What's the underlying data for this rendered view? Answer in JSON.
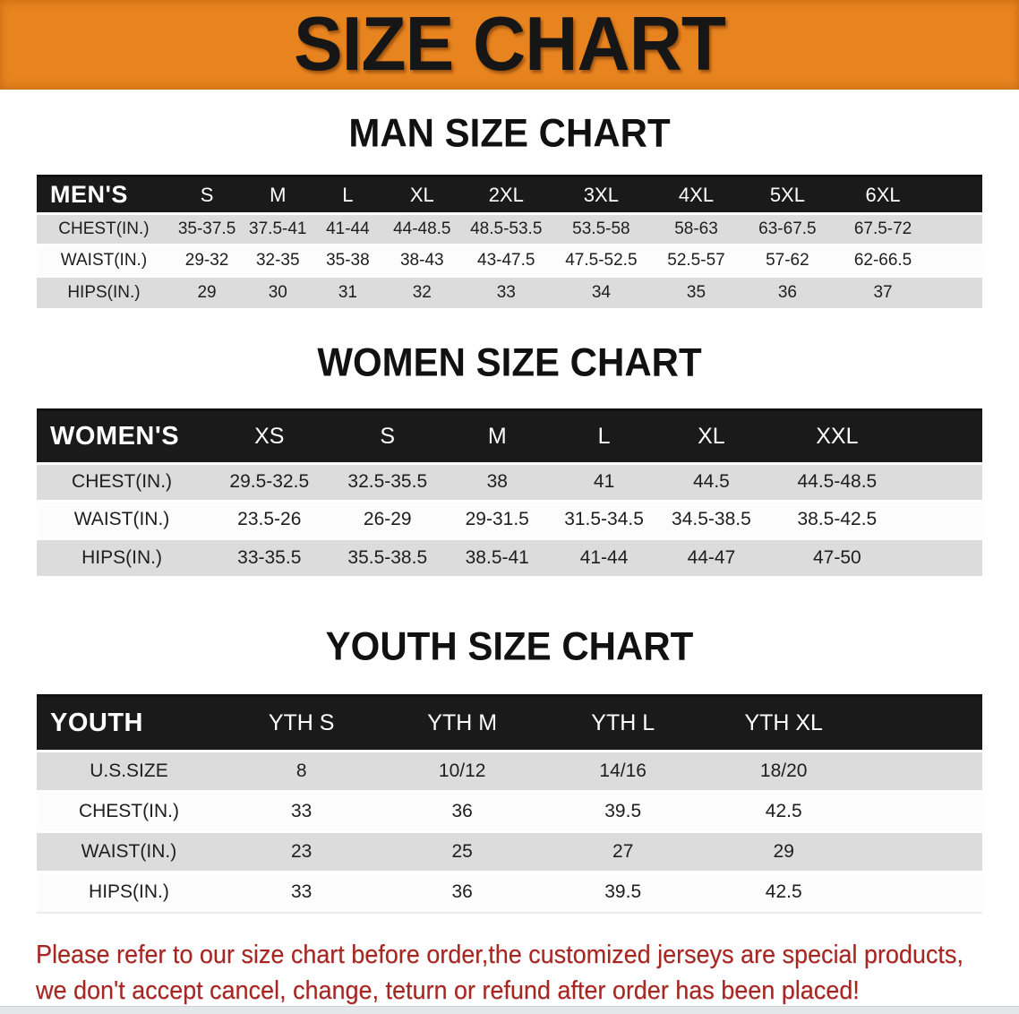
{
  "banner": {
    "title": "SIZE CHART"
  },
  "sections": {
    "men": {
      "heading": "MAN SIZE CHART"
    },
    "women": {
      "heading": "WOMEN SIZE CHART"
    },
    "youth": {
      "heading": "YOUTH SIZE CHART"
    }
  },
  "tables": {
    "men": {
      "label": "MEN'S",
      "sizes": [
        "S",
        "M",
        "L",
        "XL",
        "2XL",
        "3XL",
        "4XL",
        "5XL",
        "6XL"
      ],
      "rows": [
        {
          "label": "CHEST(IN.)",
          "values": [
            "35-37.5",
            "37.5-41",
            "41-44",
            "44-48.5",
            "48.5-53.5",
            "53.5-58",
            "58-63",
            "63-67.5",
            "67.5-72"
          ]
        },
        {
          "label": "WAIST(IN.)",
          "values": [
            "29-32",
            "32-35",
            "35-38",
            "38-43",
            "43-47.5",
            "47.5-52.5",
            "52.5-57",
            "57-62",
            "62-66.5"
          ]
        },
        {
          "label": "HIPS(IN.)",
          "values": [
            "29",
            "30",
            "31",
            "32",
            "33",
            "34",
            "35",
            "36",
            "37"
          ]
        }
      ]
    },
    "women": {
      "label": "WOMEN'S",
      "sizes": [
        "XS",
        "S",
        "M",
        "L",
        "XL",
        "XXL"
      ],
      "rows": [
        {
          "label": "CHEST(IN.)",
          "values": [
            "29.5-32.5",
            "32.5-35.5",
            "38",
            "41",
            "44.5",
            "44.5-48.5"
          ]
        },
        {
          "label": "WAIST(IN.)",
          "values": [
            "23.5-26",
            "26-29",
            "29-31.5",
            "31.5-34.5",
            "34.5-38.5",
            "38.5-42.5"
          ]
        },
        {
          "label": "HIPS(IN.)",
          "values": [
            "33-35.5",
            "35.5-38.5",
            "38.5-41",
            "41-44",
            "44-47",
            "47-50"
          ]
        }
      ]
    },
    "youth": {
      "label": "YOUTH",
      "sizes": [
        "YTH S",
        "YTH M",
        "YTH L",
        "YTH XL"
      ],
      "rows": [
        {
          "label": "U.S.SIZE",
          "values": [
            "8",
            "10/12",
            "14/16",
            "18/20"
          ]
        },
        {
          "label": "CHEST(IN.)",
          "values": [
            "33",
            "36",
            "39.5",
            "42.5"
          ]
        },
        {
          "label": "WAIST(IN.)",
          "values": [
            "23",
            "25",
            "27",
            "29"
          ]
        },
        {
          "label": "HIPS(IN.)",
          "values": [
            "33",
            "36",
            "39.5",
            "42.5"
          ]
        }
      ]
    }
  },
  "disclaimer": {
    "lines": [
      "Please refer to our size chart before order,the customized jerseys are special products,",
      "we don't accept cancel, change, teturn or refund after order has been placed!"
    ]
  },
  "colors": {
    "banner_bg": "#e8841f",
    "banner_text": "#161616",
    "table_header_bg": "#1a1a1a",
    "row_gray": "#dcdcdc",
    "row_white": "#fcfcfc",
    "disclaimer_red": "#a82621",
    "bottom_bar": "#e4e7e9"
  }
}
